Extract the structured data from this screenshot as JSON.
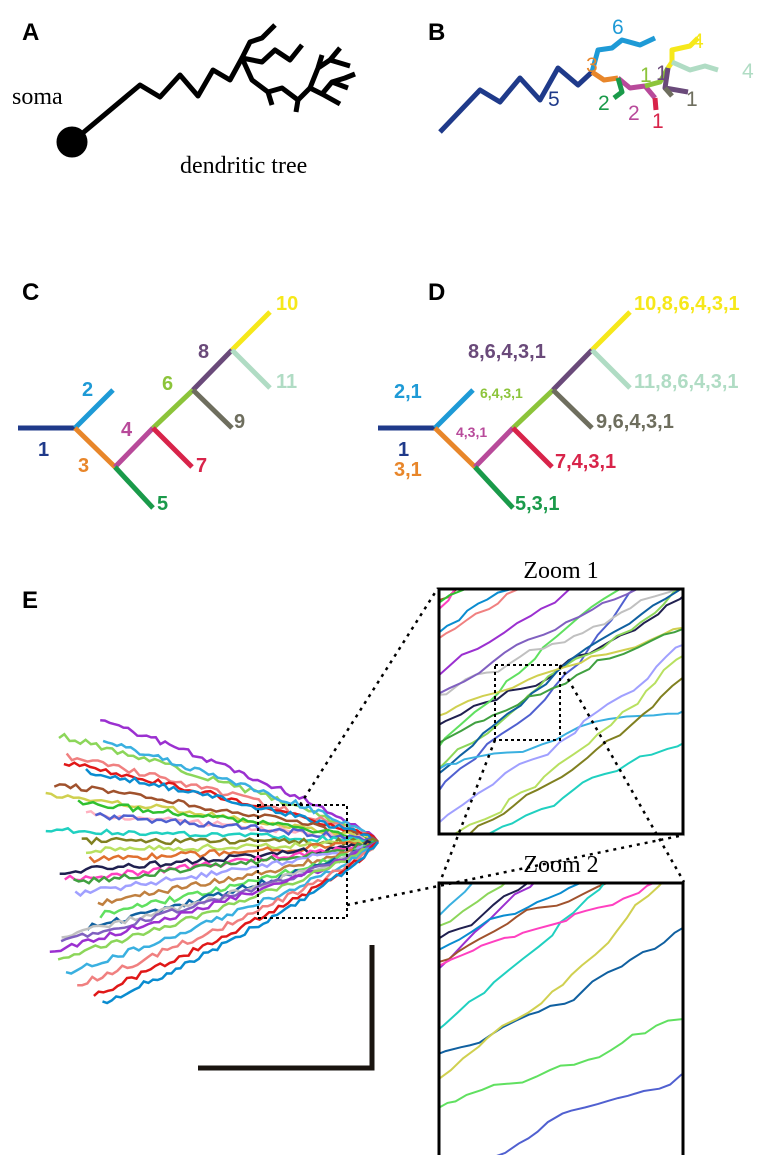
{
  "panels": {
    "a": {
      "label": "A",
      "soma": "soma",
      "tree": "dendritic tree"
    },
    "b": {
      "label": "B",
      "segments": [
        "6",
        "3",
        "5",
        "2",
        "2",
        "1",
        "1",
        "1",
        "4",
        "4",
        "1"
      ]
    },
    "c": {
      "label": "C",
      "segments": [
        "1",
        "2",
        "3",
        "4",
        "5",
        "6",
        "7",
        "8",
        "9",
        "10",
        "11"
      ]
    },
    "d": {
      "label": "D",
      "segments": [
        "1",
        "2,1",
        "3,1",
        "4,3,1",
        "5,3,1",
        "6,4,3,1",
        "7,4,3,1",
        "8,6,4,3,1",
        "9,6,4,3,1",
        "10,8,6,4,3,1",
        "11,8,6,4,3,1"
      ]
    },
    "e": {
      "label": "E",
      "zoom1": "Zoom 1",
      "zoom2": "Zoom 2"
    }
  }
}
